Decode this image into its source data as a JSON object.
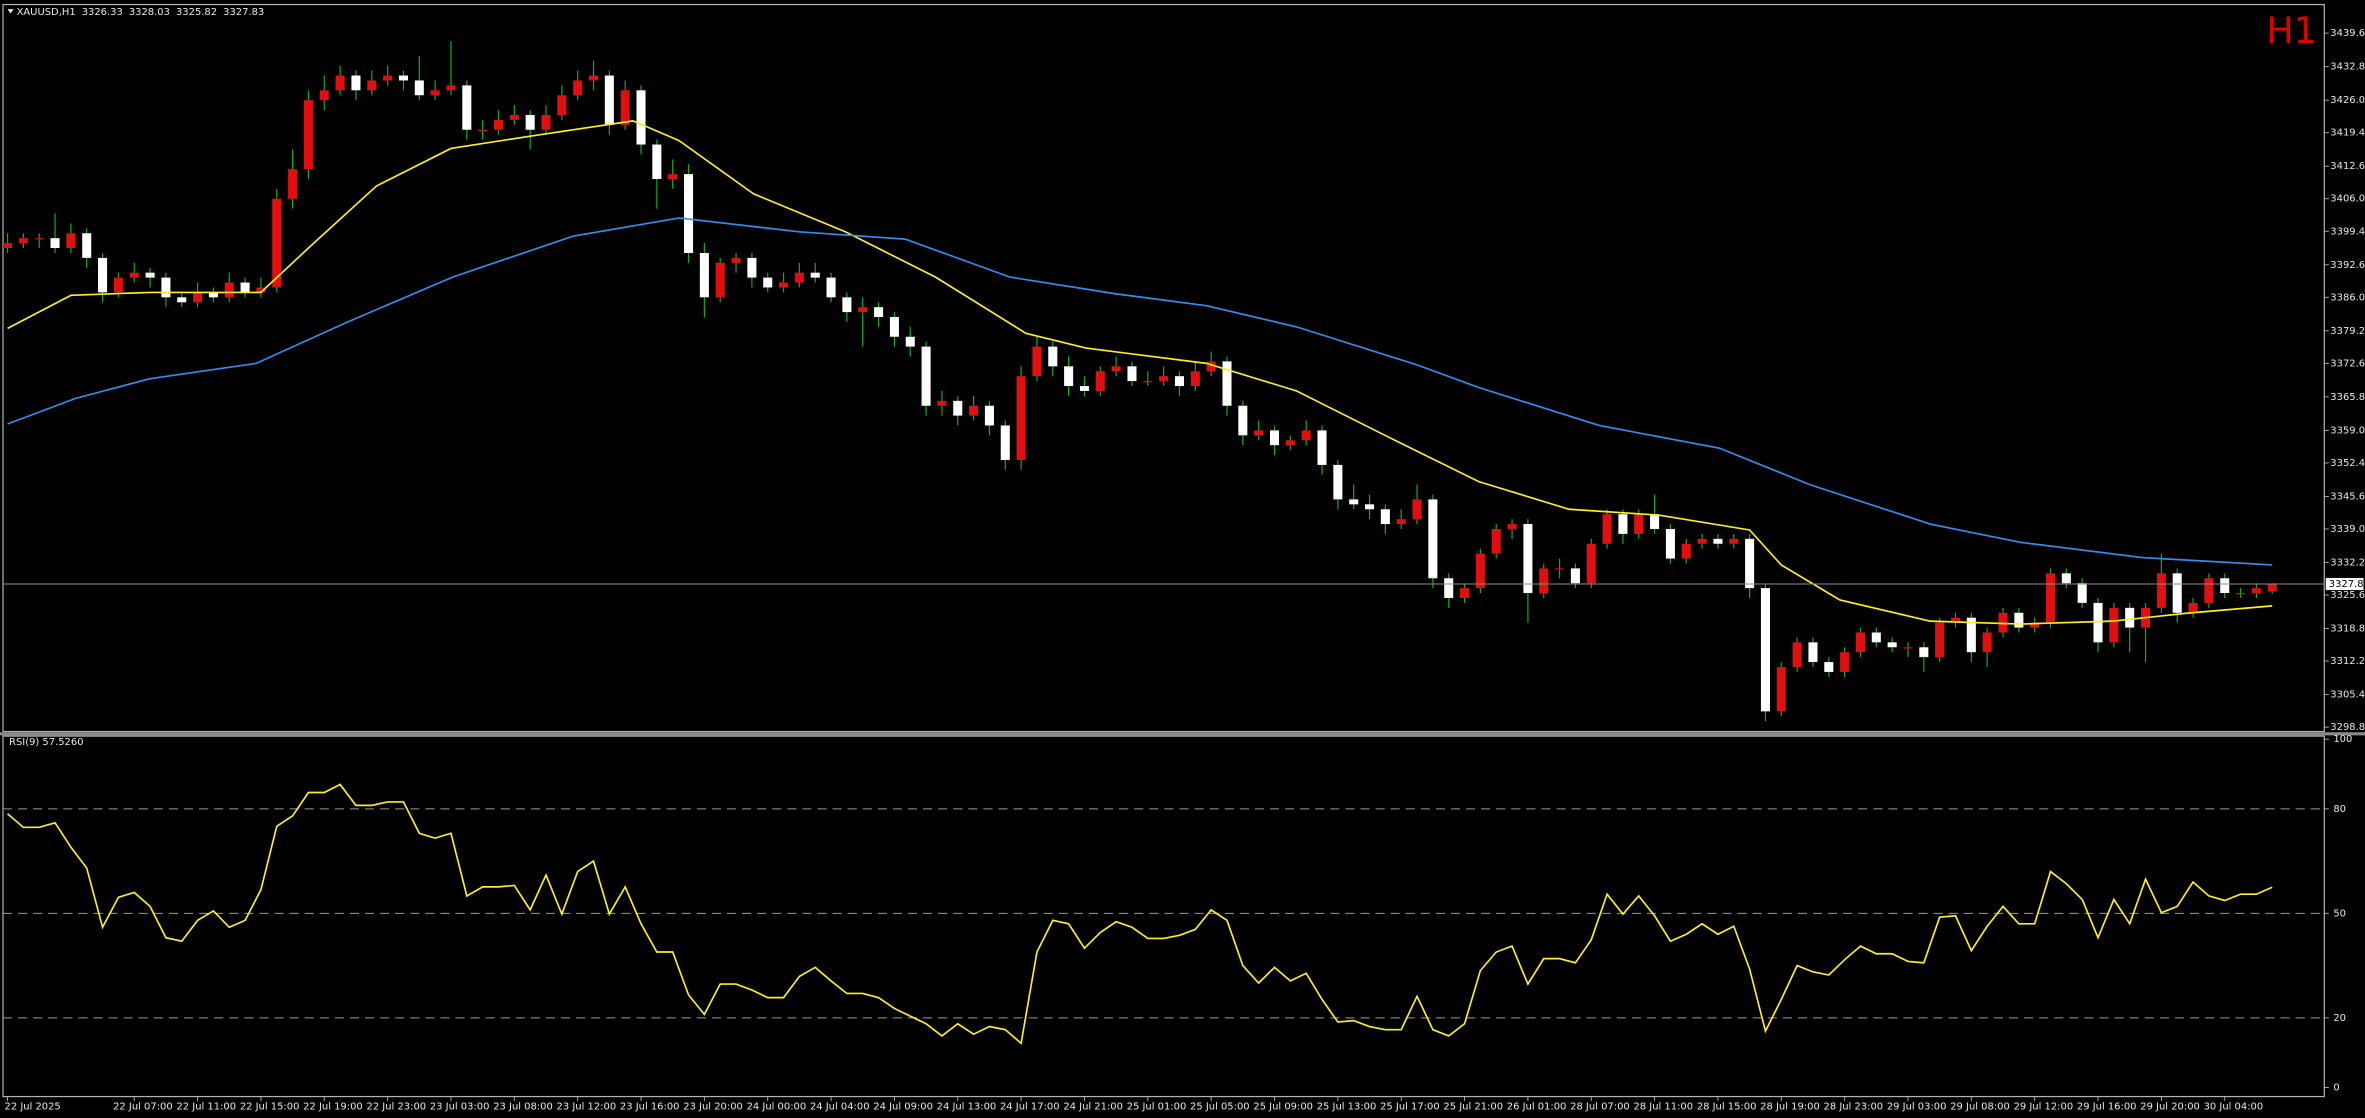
{
  "chart_data": [
    {
      "type": "candlestick",
      "title": "XAUUSD,H1",
      "timeframe": "H1",
      "up_color": "#e01010",
      "down_color": "#ffffff",
      "wick_color": "#10b010",
      "price_line_color": "#8c8c8c",
      "ylim": [
        3297.9,
        3445.4
      ],
      "yticks": [
        {
          "value": 3439.6,
          "label": "3439.60"
        },
        {
          "value": 3432.8,
          "label": "3432.80"
        },
        {
          "value": 3426,
          "label": "3426.00"
        },
        {
          "value": 3419.4,
          "label": "3419.40"
        },
        {
          "value": 3412.6,
          "label": "3412.60"
        },
        {
          "value": 3406,
          "label": "3406.00"
        },
        {
          "value": 3399.4,
          "label": "3399.40"
        },
        {
          "value": 3392.6,
          "label": "3392.60"
        },
        {
          "value": 3386,
          "label": "3386.00"
        },
        {
          "value": 3379.2,
          "label": "3379.20"
        },
        {
          "value": 3372.6,
          "label": "3372.60"
        },
        {
          "value": 3365.8,
          "label": "3365.80"
        },
        {
          "value": 3359,
          "label": "3359.00"
        },
        {
          "value": 3352.4,
          "label": "3352.40"
        },
        {
          "value": 3345.6,
          "label": "3345.60"
        },
        {
          "value": 3339,
          "label": "3339.00"
        },
        {
          "value": 3332.2,
          "label": "3332.20"
        },
        {
          "value": 3325.6,
          "label": "3325.60"
        },
        {
          "value": 3318.8,
          "label": "3318.80"
        },
        {
          "value": 3312.2,
          "label": "3312.20"
        },
        {
          "value": 3305.4,
          "label": "3305.40"
        },
        {
          "value": 3298.8,
          "label": "3298.80"
        }
      ],
      "xticks": [
        {
          "value": 0,
          "label": "22 Jul 2025"
        },
        {
          "value": 8,
          "label": "22 Jul 07:00"
        },
        {
          "value": 12,
          "label": "22 Jul 11:00"
        },
        {
          "value": 16,
          "label": "22 Jul 15:00"
        },
        {
          "value": 20,
          "label": "22 Jul 19:00"
        },
        {
          "value": 24,
          "label": "22 Jul 23:00"
        },
        {
          "value": 28,
          "label": "23 Jul 03:00"
        },
        {
          "value": 32,
          "label": "23 Jul 08:00"
        },
        {
          "value": 36,
          "label": "23 Jul 12:00"
        },
        {
          "value": 40,
          "label": "23 Jul 16:00"
        },
        {
          "value": 44,
          "label": "23 Jul 20:00"
        },
        {
          "value": 48,
          "label": "24 Jul 00:00"
        },
        {
          "value": 52,
          "label": "24 Jul 04:00"
        },
        {
          "value": 56,
          "label": "24 Jul 09:00"
        },
        {
          "value": 60,
          "label": "24 Jul 13:00"
        },
        {
          "value": 64,
          "label": "24 Jul 17:00"
        },
        {
          "value": 68,
          "label": "24 Jul 21:00"
        },
        {
          "value": 72,
          "label": "25 Jul 01:00"
        },
        {
          "value": 76,
          "label": "25 Jul 05:00"
        },
        {
          "value": 80,
          "label": "25 Jul 09:00"
        },
        {
          "value": 84,
          "label": "25 Jul 13:00"
        },
        {
          "value": 88,
          "label": "25 Jul 17:00"
        },
        {
          "value": 92,
          "label": "25 Jul 21:00"
        },
        {
          "value": 96,
          "label": "26 Jul 01:00"
        },
        {
          "value": 100,
          "label": "28 Jul 07:00"
        },
        {
          "value": 104,
          "label": "28 Jul 11:00"
        },
        {
          "value": 108,
          "label": "28 Jul 15:00"
        },
        {
          "value": 112,
          "label": "28 Jul 19:00"
        },
        {
          "value": 116,
          "label": "28 Jul 23:00"
        },
        {
          "value": 120,
          "label": "29 Jul 03:00"
        },
        {
          "value": 124,
          "label": "29 Jul 08:00"
        },
        {
          "value": 128,
          "label": "29 Jul 12:00"
        },
        {
          "value": 132,
          "label": "29 Jul 16:00"
        },
        {
          "value": 136,
          "label": "29 Jul 20:00"
        },
        {
          "value": 140,
          "label": "30 Jul 04:00"
        }
      ],
      "open": [
        3396,
        3397,
        3398,
        3398,
        3396,
        3399,
        3394,
        3387,
        3390,
        3391,
        3390,
        3386,
        3385,
        3387,
        3386,
        3389,
        3387,
        3388,
        3406,
        3412,
        3426,
        3428,
        3431,
        3428,
        3430,
        3431,
        3430,
        3427,
        3428,
        3429,
        3420,
        3420,
        3422,
        3423,
        3420,
        3423,
        3427,
        3430,
        3431,
        3421,
        3428,
        3417,
        3410,
        3411,
        3395,
        3386,
        3393,
        3394,
        3390,
        3388,
        3389,
        3391,
        3390,
        3386,
        3383,
        3384,
        3382,
        3378,
        3376,
        3364,
        3365,
        3362,
        3364,
        3360,
        3353,
        3370,
        3376,
        3372,
        3368,
        3367,
        3371,
        3372,
        3369,
        3369,
        3370,
        3368,
        3371,
        3373,
        3364,
        3358,
        3359,
        3356,
        3357,
        3359,
        3352,
        3345,
        3344,
        3343,
        3340,
        3341,
        3345,
        3329,
        3325,
        3327,
        3334,
        3339,
        3340,
        3326,
        3331,
        3331,
        3328,
        3336,
        3342,
        3338,
        3342,
        3339,
        3333,
        3336,
        3337,
        3336,
        3337,
        3327,
        3302,
        3311,
        3316,
        3312,
        3310,
        3314,
        3318,
        3316,
        3315,
        3315,
        3313,
        3320,
        3321,
        3314,
        3318,
        3322,
        3319,
        3320,
        3330,
        3328,
        3324,
        3316,
        3323,
        3319,
        3323,
        3330,
        3322,
        3324,
        3329,
        3326,
        3326,
        3326.33
      ],
      "high": [
        3399,
        3399,
        3399,
        3403,
        3401,
        3400,
        3395,
        3391,
        3393,
        3392,
        3391,
        3387,
        3389,
        3388,
        3391,
        3390,
        3390,
        3408,
        3416,
        3428,
        3431,
        3433,
        3432,
        3432,
        3433,
        3432,
        3435,
        3430,
        3438,
        3430,
        3422,
        3424,
        3425,
        3424,
        3425,
        3429,
        3432,
        3434,
        3432,
        3430,
        3429,
        3418,
        3414,
        3413,
        3397,
        3394,
        3395,
        3395,
        3391,
        3391,
        3393,
        3393,
        3391,
        3387,
        3386,
        3385,
        3383,
        3380,
        3377,
        3367,
        3366,
        3366,
        3365,
        3361,
        3372,
        3378,
        3377,
        3374,
        3370,
        3372,
        3374,
        3373,
        3371,
        3372,
        3371,
        3373,
        3375,
        3374,
        3365,
        3361,
        3360,
        3358,
        3361,
        3360,
        3353,
        3348,
        3346,
        3344,
        3343,
        3348,
        3346,
        3330,
        3328,
        3335,
        3340,
        3341,
        3341,
        3332,
        3333,
        3332,
        3337,
        3343,
        3343,
        3343,
        3346,
        3340,
        3337,
        3338,
        3338,
        3338,
        3338,
        3328,
        3312,
        3317,
        3317,
        3313,
        3315,
        3319,
        3319,
        3317,
        3316,
        3316,
        3321,
        3322,
        3322,
        3319,
        3323,
        3323,
        3321,
        3331,
        3331,
        3329,
        3325,
        3324,
        3324,
        3324,
        3334,
        3331,
        3325,
        3330,
        3330,
        3327,
        3328,
        3328.03
      ],
      "low": [
        3395,
        3396,
        3396,
        3395,
        3395,
        3392,
        3385,
        3386,
        3389,
        3388,
        3384,
        3384,
        3384,
        3385,
        3385,
        3386,
        3386,
        3387,
        3404,
        3410,
        3424,
        3427,
        3426,
        3427,
        3429,
        3428,
        3426,
        3426,
        3427,
        3418,
        3418,
        3419,
        3421,
        3416,
        3419,
        3422,
        3426,
        3428,
        3419,
        3420,
        3415,
        3404,
        3408,
        3393,
        3382,
        3385,
        3391,
        3388,
        3387,
        3387,
        3388,
        3389,
        3385,
        3381,
        3376,
        3380,
        3376,
        3374,
        3362,
        3362,
        3360,
        3361,
        3358,
        3351,
        3351,
        3369,
        3370,
        3366,
        3366,
        3366,
        3370,
        3368,
        3368,
        3368,
        3366,
        3367,
        3370,
        3362,
        3356,
        3357,
        3354,
        3355,
        3356,
        3350,
        3343,
        3343,
        3341,
        3338,
        3339,
        3340,
        3327,
        3323,
        3324,
        3326,
        3333,
        3337,
        3320,
        3325,
        3329,
        3327,
        3327,
        3335,
        3336,
        3337,
        3338,
        3332,
        3332,
        3335,
        3335,
        3335,
        3325,
        3300,
        3301,
        3310,
        3311,
        3309,
        3309,
        3313,
        3315,
        3314,
        3313,
        3310,
        3312,
        3319,
        3312,
        3311,
        3317,
        3318,
        3318,
        3319,
        3327,
        3323,
        3314,
        3315,
        3314,
        3312,
        3322,
        3320,
        3321,
        3323,
        3325,
        3325,
        3325,
        3325.82
      ],
      "close": [
        3397,
        3398,
        3398,
        3396,
        3399,
        3394,
        3387,
        3390,
        3391,
        3390,
        3386,
        3385,
        3387,
        3386,
        3389,
        3387,
        3388,
        3406,
        3412,
        3426,
        3428,
        3431,
        3428,
        3430,
        3431,
        3430,
        3427,
        3428,
        3429,
        3420,
        3420,
        3422,
        3423,
        3420,
        3423,
        3427,
        3430,
        3431,
        3421,
        3428,
        3417,
        3410,
        3411,
        3395,
        3386,
        3393,
        3394,
        3390,
        3388,
        3389,
        3391,
        3390,
        3386,
        3383,
        3384,
        3382,
        3378,
        3376,
        3364,
        3365,
        3362,
        3364,
        3360,
        3353,
        3370,
        3376,
        3372,
        3368,
        3367,
        3371,
        3372,
        3369,
        3369,
        3370,
        3368,
        3371,
        3373,
        3364,
        3358,
        3359,
        3356,
        3357,
        3359,
        3352,
        3345,
        3344,
        3343,
        3340,
        3341,
        3345,
        3329,
        3325,
        3327,
        3334,
        3339,
        3340,
        3326,
        3331,
        3331,
        3328,
        3336,
        3342,
        3338,
        3342,
        3339,
        3333,
        3336,
        3337,
        3336,
        3337,
        3327,
        3302,
        3311,
        3316,
        3312,
        3310,
        3314,
        3318,
        3316,
        3315,
        3315,
        3313,
        3320,
        3321,
        3314,
        3318,
        3322,
        3319,
        3320,
        3330,
        3328,
        3324,
        3316,
        3323,
        3319,
        3323,
        3330,
        3322,
        3324,
        3329,
        3326,
        3326,
        3327,
        3327.83
      ],
      "series": [
        {
          "color": "#ffee22",
          "x": [
            0,
            4,
            9,
            16,
            19,
            23.3,
            28,
            33,
            39.5,
            42.4,
            47.1,
            52.9,
            58.6,
            64.3,
            68.1,
            75.7,
            81.4,
            87.1,
            92.9,
            98.6,
            104.3,
            110,
            112,
            115.7,
            121.4,
            127.1,
            132.9,
            137.6,
            143
          ],
          "values": [
            3379.7,
            3386.4,
            3387,
            3387,
            3396,
            3408.6,
            3416.2,
            3418.7,
            3421.8,
            3417.8,
            3407,
            3399.3,
            3390.1,
            3378.7,
            3375.7,
            3372.6,
            3367,
            3357.8,
            3348.6,
            3343,
            3341.8,
            3338.8,
            3331.7,
            3324.6,
            3320.3,
            3319.7,
            3320.3,
            3321.9,
            3323.4
          ]
        },
        {
          "color": "#2f8ff0",
          "x": [
            0,
            4.3,
            9,
            15.7,
            21.4,
            28.1,
            35.7,
            42.4,
            50,
            56.7,
            63.3,
            70,
            75.7,
            81.4,
            89,
            92.9,
            100.5,
            108.1,
            113.8,
            121.4,
            127.1,
            134.8,
            143
          ],
          "values": [
            3360.3,
            3365.5,
            3369.5,
            3372.6,
            3380.9,
            3390.1,
            3398.4,
            3402.1,
            3399.3,
            3397.8,
            3390.1,
            3386.7,
            3384.3,
            3380,
            3372.3,
            3367.7,
            3360,
            3355.4,
            3348,
            3340,
            3336.3,
            3333.2,
            3331.7
          ]
        }
      ]
    },
    {
      "type": "line",
      "title": "RSI(9) 57.5260",
      "color": "#ffee22",
      "level_color": "#9a9a9a",
      "ylim": [
        -2.6,
        100.9
      ],
      "yticks": [
        100,
        80,
        50,
        20,
        0
      ],
      "levels": [
        80,
        50,
        20
      ],
      "values": [
        78.6,
        74.7,
        74.7,
        76,
        69,
        63,
        46,
        54.6,
        56,
        52,
        43,
        42,
        48,
        50.7,
        46,
        48,
        56.8,
        75,
        78,
        84.7,
        84.7,
        87,
        81,
        81,
        82,
        82,
        73,
        71.6,
        73,
        55,
        57.6,
        57.6,
        58,
        51,
        61,
        49.8,
        62,
        65,
        49.8,
        57.6,
        47,
        38.9,
        38.9,
        26.6,
        21,
        29.7,
        29.7,
        28,
        25.8,
        25.8,
        31.9,
        34.5,
        30.6,
        27,
        27,
        25.8,
        22.7,
        20.5,
        18.3,
        14.8,
        18.3,
        15.3,
        17.5,
        16.6,
        12.7,
        38.9,
        48,
        47,
        40,
        44.5,
        47.6,
        46,
        42.8,
        42.8,
        43.7,
        45.4,
        51,
        48,
        35,
        30,
        34.5,
        30.6,
        32.8,
        25.3,
        18.8,
        19.2,
        17.5,
        16.6,
        16.6,
        26.2,
        16.6,
        14.8,
        18.3,
        33.6,
        38.9,
        40.6,
        29.7,
        37,
        37,
        35.8,
        42.4,
        55.5,
        49.8,
        55,
        49.3,
        42,
        44,
        47,
        44,
        46.3,
        34,
        16.2,
        25.3,
        35,
        33.2,
        32.3,
        36.7,
        40.6,
        38.4,
        38.4,
        36.2,
        35.8,
        48.9,
        49.3,
        39.3,
        46.3,
        52,
        47,
        47,
        62,
        58.5,
        54,
        43,
        54,
        47,
        59.8,
        50.2,
        52,
        59,
        55,
        53.7,
        55.5,
        55.5,
        57.5
      ]
    }
  ]
}
